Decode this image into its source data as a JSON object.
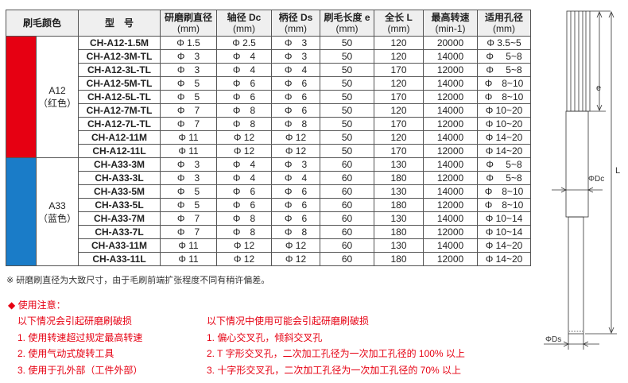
{
  "headers": {
    "color": "刷毛颜色",
    "model": "型　号",
    "brush_dia": {
      "label": "研磨刷直径",
      "unit": "(mm)"
    },
    "dc": {
      "label": "轴径 Dc",
      "unit": "(mm)"
    },
    "ds": {
      "label": "柄径 Ds",
      "unit": "(mm)"
    },
    "e": {
      "label": "刷毛长度 e",
      "unit": "(mm)"
    },
    "L": {
      "label": "全长 L",
      "unit": "(mm)"
    },
    "speed": {
      "label": "最高转速",
      "unit": "(min-1)"
    },
    "hole": {
      "label": "适用孔径",
      "unit": "(mm)"
    }
  },
  "groups": [
    {
      "name": "A12",
      "color_label": "（红色）",
      "color": "#e60012",
      "rows": [
        [
          "CH-A12-1.5M",
          "Φ 1.5",
          "Φ 2.5",
          "Φ　3",
          "50",
          "120",
          "20000",
          "Φ 3.5~5"
        ],
        [
          "CH-A12-3M-TL",
          "Φ　3",
          "Φ　4",
          "Φ　3",
          "50",
          "120",
          "14000",
          "Φ　 5~8"
        ],
        [
          "CH-A12-3L-TL",
          "Φ　3",
          "Φ　4",
          "Φ　4",
          "50",
          "170",
          "12000",
          "Φ　 5~8"
        ],
        [
          "CH-A12-5M-TL",
          "Φ　5",
          "Φ　6",
          "Φ　6",
          "50",
          "120",
          "14000",
          "Φ　8~10"
        ],
        [
          "CH-A12-5L-TL",
          "Φ　5",
          "Φ　6",
          "Φ　6",
          "50",
          "170",
          "12000",
          "Φ　8~10"
        ],
        [
          "CH-A12-7M-TL",
          "Φ　7",
          "Φ　8",
          "Φ　6",
          "50",
          "120",
          "14000",
          "Φ 10~20"
        ],
        [
          "CH-A12-7L-TL",
          "Φ　7",
          "Φ　8",
          "Φ　8",
          "50",
          "170",
          "12000",
          "Φ 10~20"
        ],
        [
          "CH-A12-11M",
          "Φ 11",
          "Φ 12",
          "Φ 12",
          "50",
          "120",
          "14000",
          "Φ 14~20"
        ],
        [
          "CH-A12-11L",
          "Φ 11",
          "Φ 12",
          "Φ 12",
          "50",
          "170",
          "12000",
          "Φ 14~20"
        ]
      ]
    },
    {
      "name": "A33",
      "color_label": "（蓝色）",
      "color": "#1a7cc8",
      "rows": [
        [
          "CH-A33-3M",
          "Φ　3",
          "Φ　4",
          "Φ　3",
          "60",
          "130",
          "14000",
          "Φ　 5~8"
        ],
        [
          "CH-A33-3L",
          "Φ　3",
          "Φ　4",
          "Φ　4",
          "60",
          "180",
          "12000",
          "Φ　 5~8"
        ],
        [
          "CH-A33-5M",
          "Φ　5",
          "Φ　6",
          "Φ　6",
          "60",
          "130",
          "14000",
          "Φ　8~10"
        ],
        [
          "CH-A33-5L",
          "Φ　5",
          "Φ　6",
          "Φ　6",
          "60",
          "180",
          "12000",
          "Φ　8~10"
        ],
        [
          "CH-A33-7M",
          "Φ　7",
          "Φ　8",
          "Φ　6",
          "60",
          "130",
          "14000",
          "Φ 10~14"
        ],
        [
          "CH-A33-7L",
          "Φ　7",
          "Φ　8",
          "Φ　8",
          "60",
          "180",
          "12000",
          "Φ 10~14"
        ],
        [
          "CH-A33-11M",
          "Φ 11",
          "Φ 12",
          "Φ 12",
          "60",
          "130",
          "14000",
          "Φ 14~20"
        ],
        [
          "CH-A33-11L",
          "Φ 11",
          "Φ 12",
          "Φ 12",
          "60",
          "180",
          "12000",
          "Φ 14~20"
        ]
      ]
    }
  ],
  "note": "※ 研磨刷直径为大致尺寸，由于毛刷前端扩张程度不同有稍许偏差。",
  "caution": {
    "title": "◆ 使用注意：",
    "left": {
      "heading": "以下情况会引起研磨刷破损",
      "items": [
        "1. 使用转速超过规定最高转速",
        "2. 使用气动式旋转工具",
        "3. 使用于孔外部（工件外部）"
      ]
    },
    "right": {
      "heading": "以下情况中使用可能会引起研磨刷破损",
      "items": [
        "1. 偏心交叉孔，倾斜交叉孔",
        "2. T 字形交叉孔，二次加工孔径为一次加工孔径的 100% 以上",
        "3. 十字形交叉孔，二次加工孔径为一次加工孔径的 70% 以上"
      ]
    }
  },
  "drawing": {
    "e": "e",
    "L": "L",
    "dc": "ΦDc",
    "ds": "ΦDs"
  }
}
